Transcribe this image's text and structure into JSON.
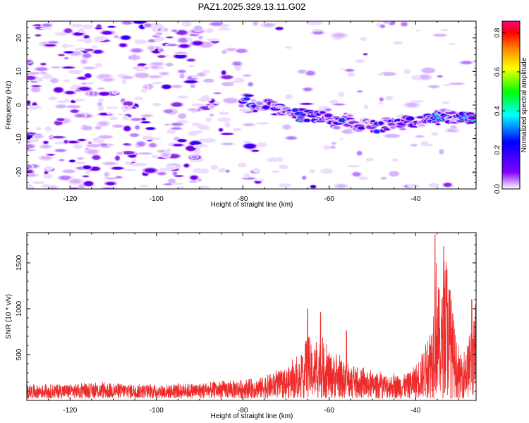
{
  "title": "PAZ1.2025.329.13.11.G02",
  "chart_data": [
    {
      "type": "heatmap",
      "name": "spectrogram",
      "xlabel": "Height of straight line (km)",
      "ylabel": "Frequency (Hz)",
      "xlim": [
        -130,
        -26
      ],
      "ylim": [
        -25,
        25
      ],
      "xticks": [
        -120,
        -100,
        -80,
        -60,
        -40
      ],
      "yticks": [
        -20,
        -10,
        0,
        10,
        20
      ],
      "ridge": {
        "x": [
          -80,
          -76,
          -72,
          -68,
          -66,
          -64,
          -60,
          -56,
          -52,
          -48,
          -44,
          -40,
          -36,
          -32,
          -28,
          -26
        ],
        "y": [
          2,
          0.5,
          -1,
          -2,
          -3.5,
          -3,
          -4,
          -4.5,
          -6,
          -6.5,
          -5,
          -4.5,
          -4,
          -3.5,
          -4,
          -4
        ]
      },
      "colorbar": {
        "label": "Normalized spectral amplitude",
        "range": [
          0,
          0.86
        ],
        "ticks": [
          "0.0",
          "0.2",
          "0.4",
          "0.6",
          "0.8"
        ],
        "colors": [
          "#ffffff",
          "#8000ff",
          "#0000ff",
          "#00ffff",
          "#00ff00",
          "#ffff00",
          "#ff8000",
          "#ff0000",
          "#ff0080"
        ]
      }
    },
    {
      "type": "line",
      "name": "snr",
      "xlabel": "Height of straight line (km)",
      "ylabel": "SNR (10 * v/v)",
      "xlim": [
        -130,
        -26
      ],
      "ylim": [
        0,
        1830
      ],
      "xticks": [
        -120,
        -100,
        -80,
        -60,
        -40
      ],
      "yticks": [
        500,
        1000,
        1500
      ],
      "color": "#ee2b2b",
      "envelope": {
        "x": [
          -130,
          -110,
          -100,
          -90,
          -82,
          -76,
          -70,
          -66,
          -65,
          -64,
          -62,
          -60,
          -58,
          -55,
          -50,
          -45,
          -42,
          -40,
          -38,
          -36,
          -35.5,
          -35,
          -34,
          -33,
          -31,
          -30,
          -28,
          -27,
          -26
        ],
        "y": [
          150,
          170,
          150,
          170,
          200,
          230,
          330,
          450,
          780,
          550,
          650,
          500,
          450,
          340,
          280,
          260,
          270,
          370,
          550,
          900,
          1810,
          1300,
          1100,
          1650,
          800,
          450,
          600,
          850,
          900
        ]
      },
      "peaks": {
        "x": [
          -65,
          -62,
          -56,
          -35.5,
          -33.5,
          -27
        ],
        "y": [
          1000,
          960,
          760,
          1810,
          1680,
          1100
        ]
      }
    }
  ]
}
